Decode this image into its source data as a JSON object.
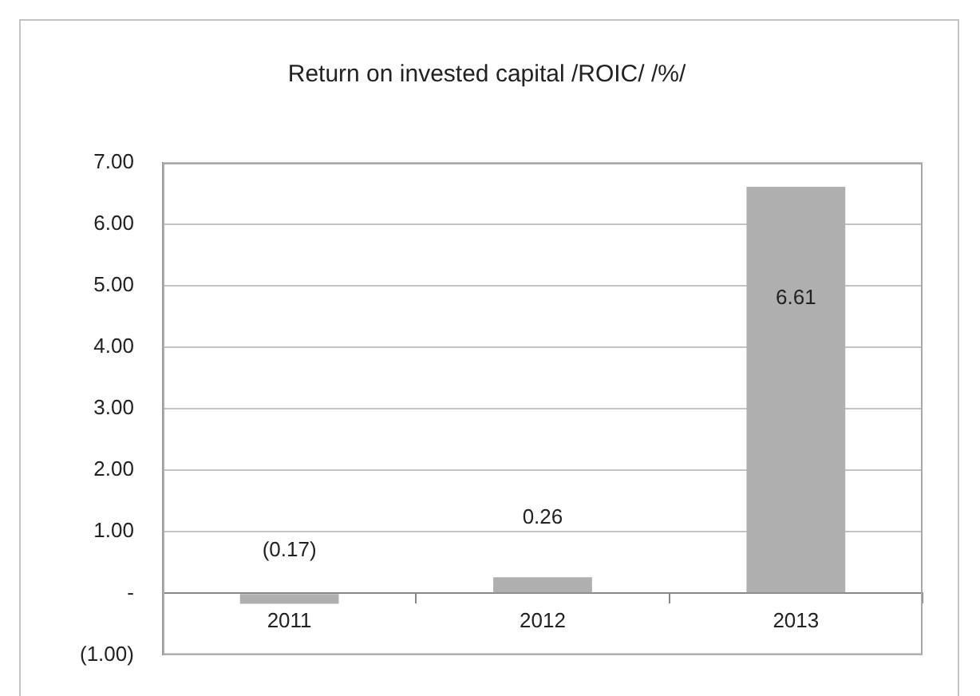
{
  "chart_data": {
    "type": "bar",
    "title": "Return on invested capital /ROIC/ /%/",
    "categories": [
      "2011",
      "2012",
      "2013"
    ],
    "values": [
      -0.17,
      0.26,
      6.61
    ],
    "color": "#afafaf",
    "value_labels": [
      "(0.17)",
      "0.26",
      "6.61"
    ],
    "ylim": [
      -1,
      7
    ],
    "yticks": [
      {
        "value": -1,
        "label": "(1.00)"
      },
      {
        "value": 0,
        "label": "-"
      },
      {
        "value": 1,
        "label": "1.00"
      },
      {
        "value": 2,
        "label": "2.00"
      },
      {
        "value": 3,
        "label": "3.00"
      },
      {
        "value": 4,
        "label": "4.00"
      },
      {
        "value": 5,
        "label": "5.00"
      },
      {
        "value": 6,
        "label": "6.00"
      },
      {
        "value": 7,
        "label": "7.00"
      }
    ],
    "grid": "y"
  }
}
